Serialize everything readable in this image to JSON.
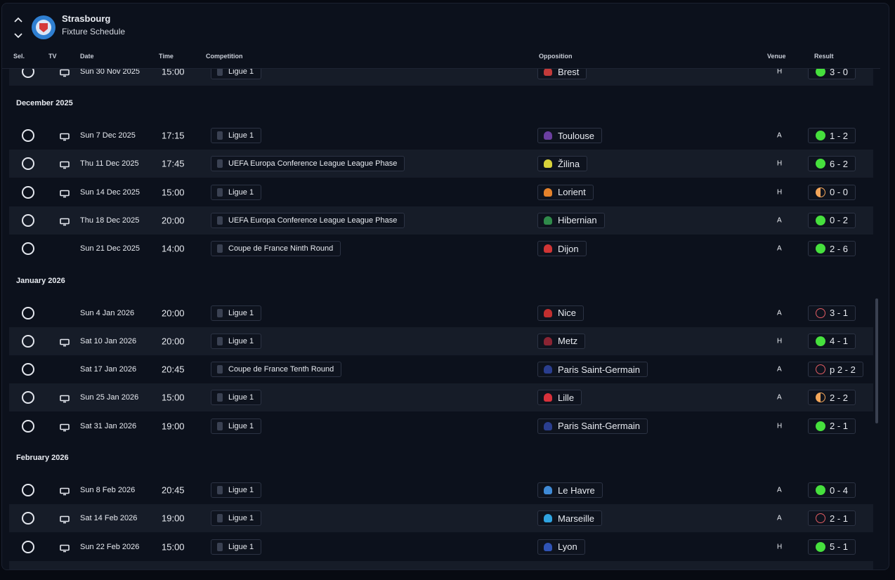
{
  "header": {
    "title": "Strasbourg",
    "subtitle": "Fixture Schedule"
  },
  "columns": [
    "Sel.",
    "TV",
    "Date",
    "Time",
    "Competition",
    "Opposition",
    "Venue",
    "Result"
  ],
  "partial_row": {
    "tv": true,
    "date": "Sun 30 Nov 2025",
    "time": "15:00",
    "competition": "Ligue 1",
    "opposition": "Brest",
    "venue": "H",
    "result": "3 - 0",
    "outcome": "win"
  },
  "groups": [
    {
      "month": "December 2025",
      "rows": [
        {
          "tv": true,
          "date": "Sun 7 Dec 2025",
          "time": "17:15",
          "competition": "Ligue 1",
          "opposition": "Toulouse",
          "venue": "A",
          "result": "1 - 2",
          "outcome": "win"
        },
        {
          "tv": true,
          "date": "Thu 11 Dec 2025",
          "time": "17:45",
          "competition": "UEFA Europa Conference League League Phase",
          "opposition": "Žilina",
          "venue": "H",
          "result": "6 - 2",
          "outcome": "win"
        },
        {
          "tv": true,
          "date": "Sun 14 Dec 2025",
          "time": "15:00",
          "competition": "Ligue 1",
          "opposition": "Lorient",
          "venue": "H",
          "result": "0 - 0",
          "outcome": "draw"
        },
        {
          "tv": true,
          "date": "Thu 18 Dec 2025",
          "time": "20:00",
          "competition": "UEFA Europa Conference League League Phase",
          "opposition": "Hibernian",
          "venue": "A",
          "result": "0 - 2",
          "outcome": "win"
        },
        {
          "tv": false,
          "date": "Sun 21 Dec 2025",
          "time": "14:00",
          "competition": "Coupe de France Ninth Round",
          "opposition": "Dijon",
          "venue": "A",
          "result": "2 - 6",
          "outcome": "win"
        }
      ]
    },
    {
      "month": "January 2026",
      "rows": [
        {
          "tv": false,
          "date": "Sun 4 Jan 2026",
          "time": "20:00",
          "competition": "Ligue 1",
          "opposition": "Nice",
          "venue": "A",
          "result": "3 - 1",
          "outcome": "loss"
        },
        {
          "tv": true,
          "date": "Sat 10 Jan 2026",
          "time": "20:00",
          "competition": "Ligue 1",
          "opposition": "Metz",
          "venue": "H",
          "result": "4 - 1",
          "outcome": "win"
        },
        {
          "tv": false,
          "date": "Sat 17 Jan 2026",
          "time": "20:45",
          "competition": "Coupe de France Tenth Round",
          "opposition": "Paris Saint-Germain",
          "venue": "A",
          "result": "p 2 - 2",
          "outcome": "loss"
        },
        {
          "tv": true,
          "date": "Sun 25 Jan 2026",
          "time": "15:00",
          "competition": "Ligue 1",
          "opposition": "Lille",
          "venue": "A",
          "result": "2 - 2",
          "outcome": "draw"
        },
        {
          "tv": true,
          "date": "Sat 31 Jan 2026",
          "time": "19:00",
          "competition": "Ligue 1",
          "opposition": "Paris Saint-Germain",
          "venue": "H",
          "result": "2 - 1",
          "outcome": "win"
        }
      ]
    },
    {
      "month": "February 2026",
      "rows": [
        {
          "tv": true,
          "date": "Sun 8 Feb 2026",
          "time": "20:45",
          "competition": "Ligue 1",
          "opposition": "Le Havre",
          "venue": "A",
          "result": "0 - 4",
          "outcome": "win"
        },
        {
          "tv": true,
          "date": "Sat 14 Feb 2026",
          "time": "19:00",
          "competition": "Ligue 1",
          "opposition": "Marseille",
          "venue": "A",
          "result": "2 - 1",
          "outcome": "loss"
        },
        {
          "tv": true,
          "date": "Sun 22 Feb 2026",
          "time": "15:00",
          "competition": "Ligue 1",
          "opposition": "Lyon",
          "venue": "H",
          "result": "5 - 1",
          "outcome": "win"
        }
      ]
    }
  ]
}
